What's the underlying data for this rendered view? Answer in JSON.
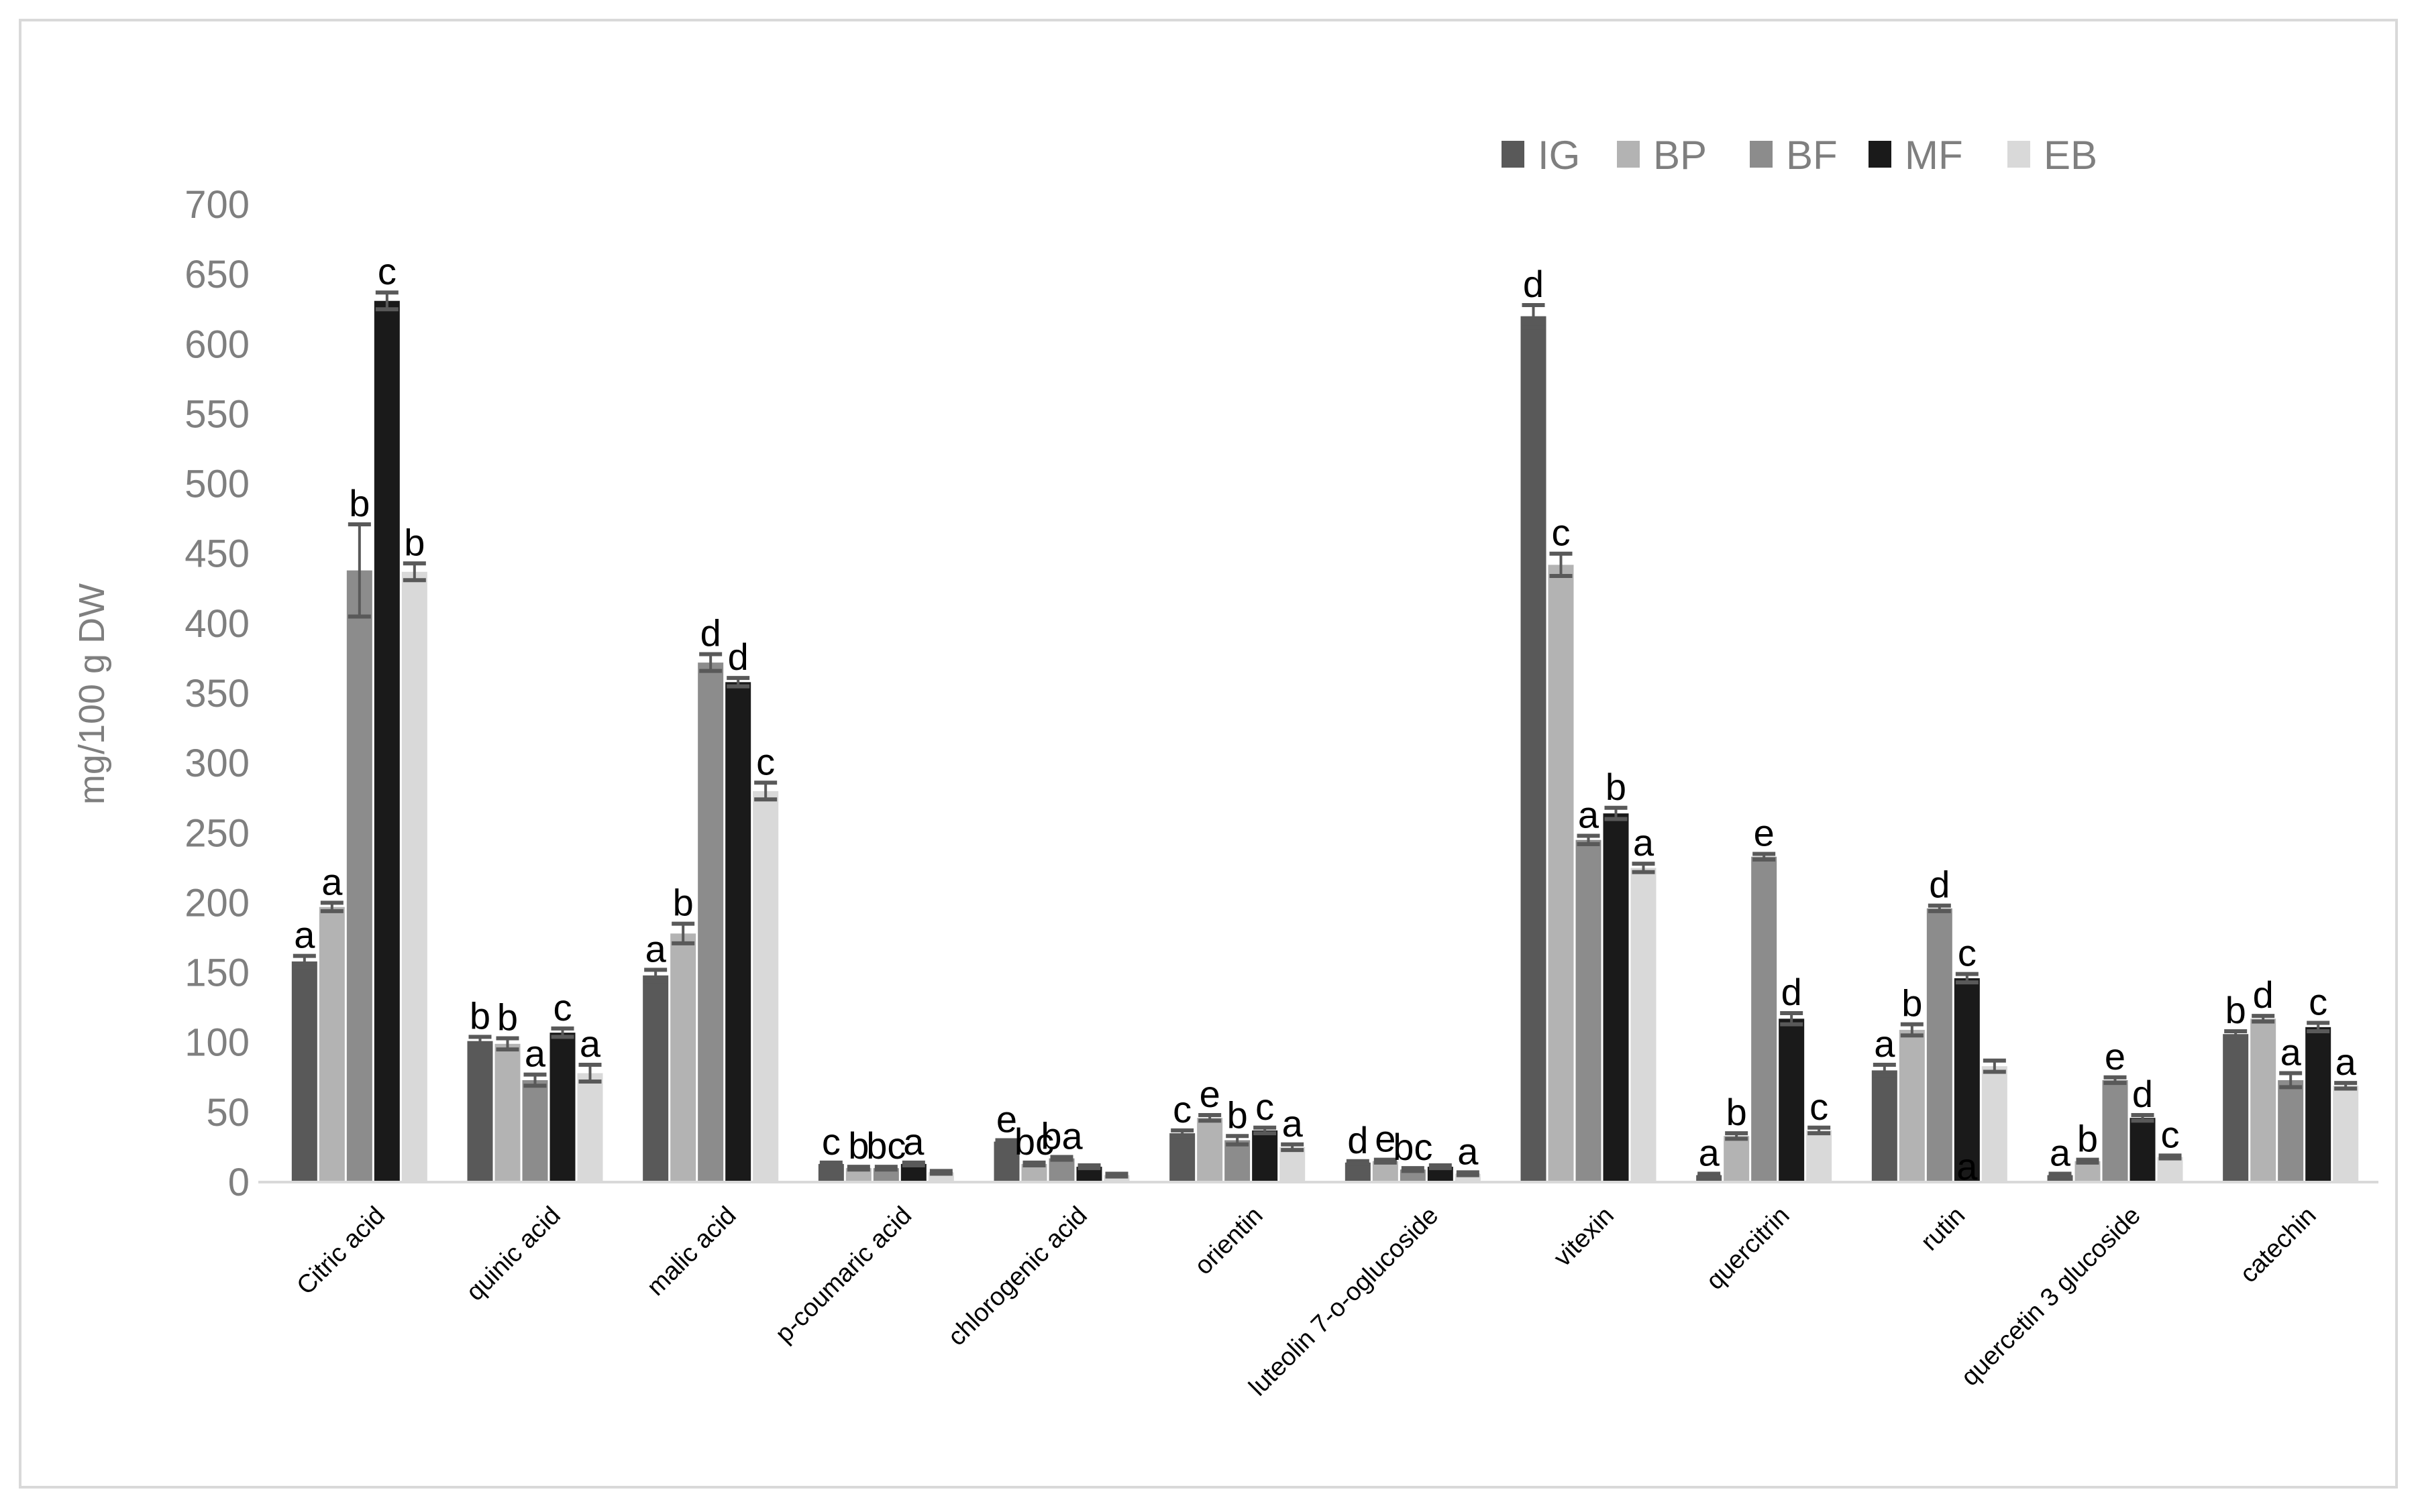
{
  "chart_data": {
    "type": "bar",
    "ylabel": "mg/100 g DW",
    "ylim": [
      0,
      700
    ],
    "yticks": [
      0,
      50,
      100,
      150,
      200,
      250,
      300,
      350,
      400,
      450,
      500,
      550,
      600,
      650,
      700
    ],
    "grid": false,
    "legend_position": "top-right",
    "categories": [
      "Citric acid",
      "quinic acid",
      "malic acid",
      "p-coumaric acid",
      "chlorogenic acid",
      "orientin",
      "luteolin 7-o-oglucoside",
      "vitexin",
      "quercitrin",
      "rutin",
      "quercetin 3 glucoside",
      "catechin"
    ],
    "series": [
      {
        "name": "IG",
        "color": "#595959",
        "values": [
          158,
          101,
          148,
          13,
          29,
          35,
          14,
          620,
          5,
          80,
          5,
          106
        ],
        "errors": [
          4,
          3,
          4,
          1,
          1,
          2,
          1,
          8,
          1,
          4,
          1,
          2
        ],
        "letters": [
          "a",
          "b",
          "a",
          "c",
          "e",
          "c",
          "d",
          "d",
          "a",
          "a",
          "a",
          "b"
        ]
      },
      {
        "name": "BP",
        "color": "#b3b3b3",
        "values": [
          197,
          99,
          178,
          10,
          13,
          46,
          15,
          442,
          33,
          109,
          15,
          117
        ],
        "errors": [
          3,
          4,
          7,
          1,
          1,
          2,
          1,
          8,
          2,
          4,
          1,
          2
        ],
        "letters": [
          "a",
          "b",
          "b",
          "b",
          "bc",
          "e",
          "e",
          "c",
          "b",
          "b",
          "b",
          "d"
        ]
      },
      {
        "name": "BF",
        "color": "#8c8c8c",
        "values": [
          438,
          73,
          372,
          10,
          17,
          30,
          9,
          245,
          233,
          196,
          73,
          73
        ],
        "errors": [
          33,
          4,
          6,
          1,
          1,
          3,
          1,
          3,
          2,
          2,
          2,
          5
        ],
        "letters": [
          "b",
          "a",
          "d",
          "bc",
          "ba",
          "b",
          "bc",
          "a",
          "e",
          "d",
          "e",
          "a"
        ]
      },
      {
        "name": "MF",
        "color": "#1a1a1a",
        "values": [
          631,
          107,
          358,
          13,
          11,
          37,
          11,
          264,
          117,
          146,
          46,
          111
        ],
        "errors": [
          6,
          3,
          3,
          1,
          1,
          2,
          1,
          4,
          4,
          3,
          2,
          3
        ],
        "letters": [
          "c",
          "c",
          "d",
          "a",
          "",
          "c",
          "",
          "b",
          "d",
          "c",
          "d",
          "c"
        ]
      },
      {
        "name": "EB",
        "color": "#d9d9d9",
        "values": [
          437,
          78,
          280,
          7,
          5,
          25,
          6,
          225,
          37,
          83,
          18,
          69
        ],
        "errors": [
          6,
          6,
          6,
          1,
          1,
          2,
          1,
          3,
          2,
          4,
          1,
          2
        ],
        "letters": [
          "b",
          "a",
          "c",
          "",
          "",
          "a",
          "a",
          "a",
          "c",
          "",
          "c",
          "a"
        ]
      }
    ],
    "extra_labels": [
      {
        "category": "rutin",
        "series": "MF",
        "text": "a"
      }
    ]
  }
}
